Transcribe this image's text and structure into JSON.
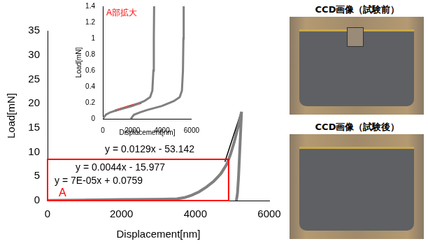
{
  "chart_data": [
    {
      "type": "line",
      "x_label": "Displacement[nm]",
      "y_label": "Load[mN]",
      "xlim": [
        0,
        6000
      ],
      "xticks": [
        0,
        2000,
        4000,
        6000
      ],
      "ylim": [
        0,
        35
      ],
      "yticks": [
        0,
        5,
        10,
        15,
        20,
        25,
        30,
        35
      ],
      "grid": false,
      "series": [
        {
          "color": "#808080",
          "x": [
            0,
            500,
            1000,
            2000,
            3000,
            3500,
            3700,
            3900,
            4100,
            4300,
            4500,
            4700,
            4850,
            4950,
            5050,
            5150,
            5250,
            5230,
            5200,
            5170,
            5140,
            5110
          ],
          "values": [
            0.05,
            0.08,
            0.1,
            0.2,
            0.25,
            0.35,
            0.6,
            1.1,
            1.8,
            2.8,
            4,
            5.6,
            7.5,
            9.5,
            12,
            15,
            18.3,
            15,
            10,
            5,
            1.5,
            0
          ]
        },
        {
          "color": "#ff0000",
          "x": [
            1000,
            3300
          ],
          "values": [
            0.12,
            0.3
          ]
        },
        {
          "color": "#4f81bd",
          "x": [
            3700,
            3900,
            4100,
            4300,
            4450
          ],
          "values": [
            0.6,
            1.1,
            1.8,
            2.8,
            3.7
          ]
        },
        {
          "color": "#70ad47",
          "x": [
            4450,
            4600,
            4750,
            4850
          ],
          "values": [
            3.7,
            4.7,
            6.4,
            7.5
          ]
        },
        {
          "color": "#000000",
          "x": [
            4800,
            5230
          ],
          "values": [
            8,
            18
          ]
        }
      ],
      "region": {
        "label": "A",
        "color": "#ff0000",
        "xlim": [
          0,
          4900
        ],
        "ylim": [
          0,
          8.5
        ]
      },
      "annotations": [
        {
          "text": "y = 0.0129x - 53.142",
          "color": "#000000"
        },
        {
          "text": "y = 0.0044x - 15.977",
          "color": "#000000"
        },
        {
          "text": "y = 7E-05x + 0.0759",
          "color": "#000000"
        }
      ]
    },
    {
      "type": "line",
      "x_label": "Displacement[nm]",
      "y_label": "Load[mN]",
      "xlim": [
        0,
        6000
      ],
      "xticks": [
        0,
        2000,
        4000,
        6000
      ],
      "ylim": [
        0,
        1.4
      ],
      "yticks": [
        0,
        0.2,
        0.4,
        0.6,
        0.8,
        1,
        1.2,
        1.4
      ],
      "grid": false,
      "series": [
        {
          "color": "#808080",
          "x": [
            0,
            200,
            500,
            1000,
            2000,
            2800,
            3200,
            3350,
            3420,
            3450,
            3470
          ],
          "values": [
            0,
            0.05,
            0.08,
            0.11,
            0.16,
            0.22,
            0.27,
            0.35,
            0.6,
            1,
            1.4
          ]
        },
        {
          "color": "#808080",
          "x": [
            1900,
            2100,
            2500,
            3000,
            4000,
            4800,
            5200,
            5350,
            5420,
            5450,
            5470
          ],
          "values": [
            0,
            0.05,
            0.08,
            0.11,
            0.16,
            0.22,
            0.27,
            0.35,
            0.6,
            1,
            1.4
          ]
        },
        {
          "color": "#ff0000",
          "x": [
            800,
            2600
          ],
          "values": [
            0.1,
            0.2
          ]
        }
      ],
      "annotations": [
        {
          "text": "A部拡大",
          "color": "#ff0000"
        }
      ]
    }
  ],
  "images": [
    {
      "caption": "CCD画像（試験前）"
    },
    {
      "caption": "CCD画像（試験後）"
    }
  ]
}
